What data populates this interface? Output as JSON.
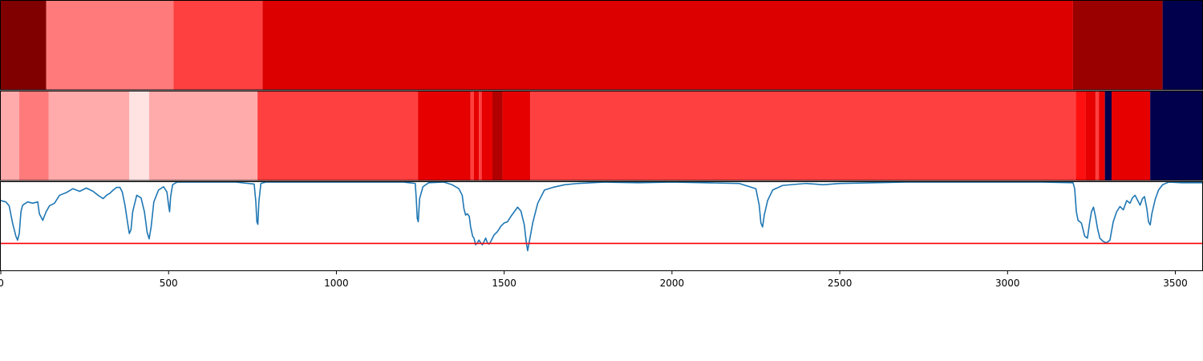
{
  "chart_data": [
    {
      "type": "heatmap",
      "xlim": [
        0,
        3580
      ],
      "segments": [
        {
          "start": 0,
          "end": 135,
          "color": "#800000"
        },
        {
          "start": 135,
          "end": 515,
          "color": "#ff7b7b"
        },
        {
          "start": 515,
          "end": 780,
          "color": "#ff4040"
        },
        {
          "start": 780,
          "end": 3195,
          "color": "#dc0000"
        },
        {
          "start": 3195,
          "end": 3462,
          "color": "#9b0000"
        },
        {
          "start": 3462,
          "end": 3580,
          "color": "#00004c"
        }
      ]
    },
    {
      "type": "heatmap",
      "xlim": [
        0,
        3580
      ],
      "segments": [
        {
          "start": 0,
          "end": 55,
          "color": "#ffabab"
        },
        {
          "start": 55,
          "end": 143,
          "color": "#ff7b7b"
        },
        {
          "start": 143,
          "end": 383,
          "color": "#ffabab"
        },
        {
          "start": 383,
          "end": 442,
          "color": "#ffe2e2"
        },
        {
          "start": 442,
          "end": 765,
          "color": "#ffabab"
        },
        {
          "start": 765,
          "end": 1243,
          "color": "#ff4040"
        },
        {
          "start": 1243,
          "end": 1400,
          "color": "#e60000"
        },
        {
          "start": 1400,
          "end": 1410,
          "color": "#ff4040"
        },
        {
          "start": 1410,
          "end": 1425,
          "color": "#e60000"
        },
        {
          "start": 1425,
          "end": 1433,
          "color": "#ff4040"
        },
        {
          "start": 1433,
          "end": 1465,
          "color": "#e60000"
        },
        {
          "start": 1465,
          "end": 1495,
          "color": "#b20000"
        },
        {
          "start": 1495,
          "end": 1578,
          "color": "#e60000"
        },
        {
          "start": 1578,
          "end": 3203,
          "color": "#ff4040"
        },
        {
          "start": 3203,
          "end": 3232,
          "color": "#ff1010"
        },
        {
          "start": 3232,
          "end": 3262,
          "color": "#e60000"
        },
        {
          "start": 3262,
          "end": 3272,
          "color": "#ff4040"
        },
        {
          "start": 3272,
          "end": 3290,
          "color": "#e60000"
        },
        {
          "start": 3290,
          "end": 3310,
          "color": "#00004c"
        },
        {
          "start": 3310,
          "end": 3425,
          "color": "#e60000"
        },
        {
          "start": 3425,
          "end": 3580,
          "color": "#00004c"
        }
      ]
    },
    {
      "type": "line",
      "xlim": [
        0,
        3580
      ],
      "ylim": [
        -0.35,
        1.0
      ],
      "x_ticks": [
        0,
        500,
        1000,
        1500,
        2000,
        2500,
        3000,
        3500
      ],
      "threshold": {
        "value": 0.07,
        "color": "#ff0000"
      },
      "series": [
        {
          "color": "#1f77b4",
          "points": [
            [
              0,
              0.72
            ],
            [
              15,
              0.7
            ],
            [
              25,
              0.64
            ],
            [
              35,
              0.38
            ],
            [
              45,
              0.18
            ],
            [
              50,
              0.12
            ],
            [
              55,
              0.22
            ],
            [
              60,
              0.55
            ],
            [
              65,
              0.65
            ],
            [
              80,
              0.7
            ],
            [
              95,
              0.68
            ],
            [
              110,
              0.7
            ],
            [
              115,
              0.52
            ],
            [
              125,
              0.42
            ],
            [
              135,
              0.55
            ],
            [
              145,
              0.64
            ],
            [
              160,
              0.68
            ],
            [
              175,
              0.8
            ],
            [
              195,
              0.84
            ],
            [
              215,
              0.9
            ],
            [
              235,
              0.86
            ],
            [
              255,
              0.91
            ],
            [
              275,
              0.86
            ],
            [
              290,
              0.8
            ],
            [
              305,
              0.75
            ],
            [
              315,
              0.8
            ],
            [
              325,
              0.83
            ],
            [
              335,
              0.88
            ],
            [
              345,
              0.92
            ],
            [
              355,
              0.92
            ],
            [
              362,
              0.85
            ],
            [
              370,
              0.65
            ],
            [
              378,
              0.38
            ],
            [
              383,
              0.22
            ],
            [
              388,
              0.28
            ],
            [
              393,
              0.55
            ],
            [
              405,
              0.8
            ],
            [
              418,
              0.76
            ],
            [
              428,
              0.55
            ],
            [
              436,
              0.24
            ],
            [
              442,
              0.14
            ],
            [
              448,
              0.32
            ],
            [
              456,
              0.7
            ],
            [
              470,
              0.88
            ],
            [
              485,
              0.93
            ],
            [
              495,
              0.85
            ],
            [
              500,
              0.65
            ],
            [
              503,
              0.55
            ],
            [
              506,
              0.78
            ],
            [
              512,
              0.96
            ],
            [
              525,
              1.0
            ],
            [
              600,
              1.0
            ],
            [
              700,
              1.0
            ],
            [
              755,
              0.97
            ],
            [
              760,
              0.7
            ],
            [
              763,
              0.4
            ],
            [
              766,
              0.36
            ],
            [
              769,
              0.7
            ],
            [
              775,
              0.98
            ],
            [
              790,
              1.0
            ],
            [
              1000,
              1.0
            ],
            [
              1200,
              1.0
            ],
            [
              1235,
              0.98
            ],
            [
              1238,
              0.75
            ],
            [
              1241,
              0.45
            ],
            [
              1244,
              0.4
            ],
            [
              1248,
              0.75
            ],
            [
              1258,
              0.93
            ],
            [
              1275,
              0.99
            ],
            [
              1320,
              1.0
            ],
            [
              1345,
              0.96
            ],
            [
              1365,
              0.9
            ],
            [
              1375,
              0.8
            ],
            [
              1380,
              0.6
            ],
            [
              1385,
              0.5
            ],
            [
              1390,
              0.52
            ],
            [
              1396,
              0.48
            ],
            [
              1400,
              0.32
            ],
            [
              1406,
              0.18
            ],
            [
              1410,
              0.15
            ],
            [
              1415,
              0.05
            ],
            [
              1420,
              0.08
            ],
            [
              1425,
              0.12
            ],
            [
              1430,
              0.08
            ],
            [
              1435,
              0.05
            ],
            [
              1440,
              0.1
            ],
            [
              1445,
              0.15
            ],
            [
              1450,
              0.08
            ],
            [
              1455,
              0.06
            ],
            [
              1460,
              0.1
            ],
            [
              1470,
              0.2
            ],
            [
              1480,
              0.25
            ],
            [
              1490,
              0.33
            ],
            [
              1500,
              0.38
            ],
            [
              1510,
              0.4
            ],
            [
              1520,
              0.48
            ],
            [
              1530,
              0.55
            ],
            [
              1540,
              0.62
            ],
            [
              1550,
              0.56
            ],
            [
              1560,
              0.35
            ],
            [
              1566,
              0.08
            ],
            [
              1570,
              -0.04
            ],
            [
              1575,
              0.1
            ],
            [
              1585,
              0.38
            ],
            [
              1600,
              0.68
            ],
            [
              1620,
              0.88
            ],
            [
              1645,
              0.92
            ],
            [
              1680,
              0.96
            ],
            [
              1720,
              0.98
            ],
            [
              1800,
              1.0
            ],
            [
              1900,
              0.99
            ],
            [
              2000,
              1.0
            ],
            [
              2100,
              0.99
            ],
            [
              2200,
              0.98
            ],
            [
              2250,
              0.9
            ],
            [
              2260,
              0.65
            ],
            [
              2265,
              0.38
            ],
            [
              2270,
              0.32
            ],
            [
              2275,
              0.5
            ],
            [
              2285,
              0.72
            ],
            [
              2300,
              0.88
            ],
            [
              2330,
              0.95
            ],
            [
              2400,
              0.98
            ],
            [
              2450,
              0.96
            ],
            [
              2500,
              0.98
            ],
            [
              2600,
              0.99
            ],
            [
              2700,
              1.0
            ],
            [
              2800,
              1.0
            ],
            [
              3000,
              1.0
            ],
            [
              3100,
              1.0
            ],
            [
              3195,
              0.99
            ],
            [
              3200,
              0.9
            ],
            [
              3205,
              0.55
            ],
            [
              3210,
              0.42
            ],
            [
              3220,
              0.38
            ],
            [
              3230,
              0.18
            ],
            [
              3238,
              0.15
            ],
            [
              3245,
              0.4
            ],
            [
              3250,
              0.55
            ],
            [
              3256,
              0.62
            ],
            [
              3262,
              0.48
            ],
            [
              3268,
              0.3
            ],
            [
              3275,
              0.15
            ],
            [
              3285,
              0.1
            ],
            [
              3295,
              0.08
            ],
            [
              3305,
              0.12
            ],
            [
              3315,
              0.4
            ],
            [
              3325,
              0.55
            ],
            [
              3335,
              0.63
            ],
            [
              3345,
              0.58
            ],
            [
              3355,
              0.72
            ],
            [
              3365,
              0.68
            ],
            [
              3372,
              0.76
            ],
            [
              3380,
              0.8
            ],
            [
              3388,
              0.72
            ],
            [
              3395,
              0.65
            ],
            [
              3402,
              0.75
            ],
            [
              3408,
              0.78
            ],
            [
              3415,
              0.6
            ],
            [
              3420,
              0.4
            ],
            [
              3425,
              0.35
            ],
            [
              3430,
              0.52
            ],
            [
              3440,
              0.74
            ],
            [
              3450,
              0.88
            ],
            [
              3462,
              0.96
            ],
            [
              3480,
              1.0
            ],
            [
              3520,
              0.99
            ],
            [
              3580,
              0.99
            ]
          ]
        }
      ]
    }
  ]
}
